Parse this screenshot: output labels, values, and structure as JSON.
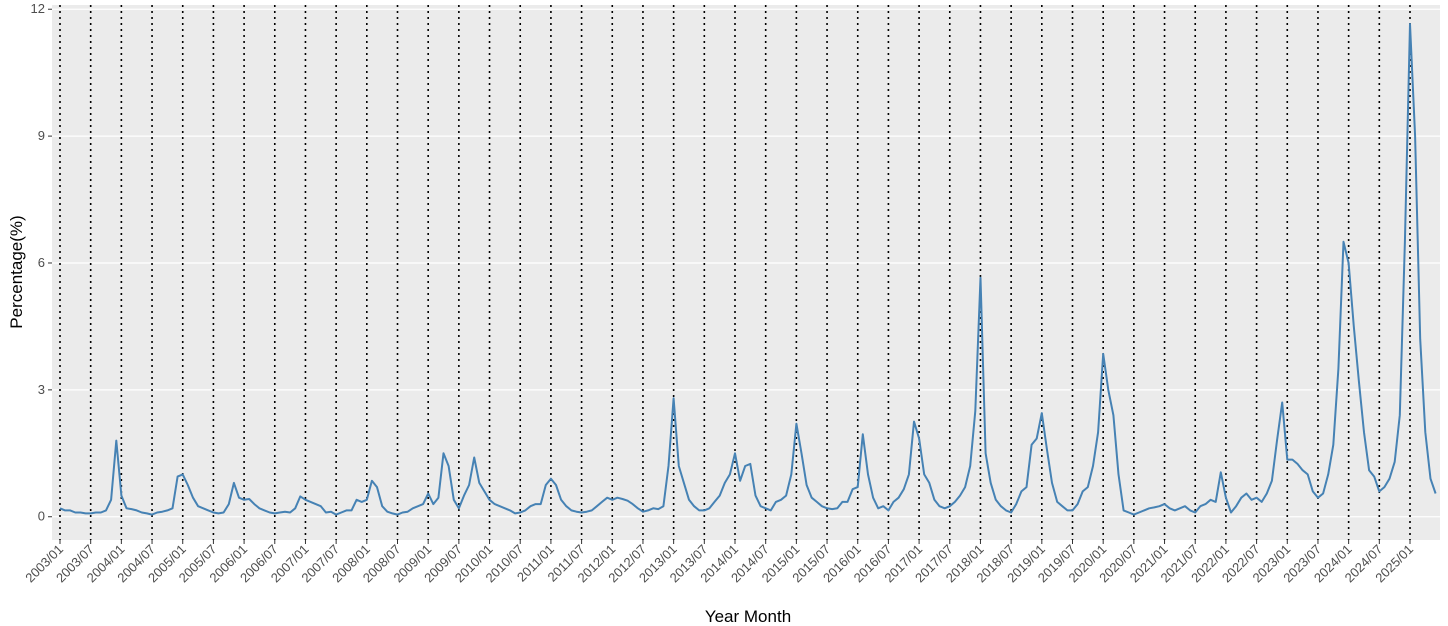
{
  "chart_data": {
    "type": "line",
    "x_label": "Year Month",
    "y_label": "Percentage(%)",
    "ylim": [
      -0.55,
      12.1
    ],
    "yticks": [
      0,
      3,
      6,
      9,
      12
    ],
    "grid": true,
    "x_grid_style": "dotted",
    "categories": [
      "2003/01",
      null,
      null,
      null,
      null,
      null,
      "2003/07",
      null,
      null,
      null,
      null,
      null,
      "2004/01",
      null,
      null,
      null,
      null,
      null,
      "2004/07",
      null,
      null,
      null,
      null,
      null,
      "2005/01",
      null,
      null,
      null,
      null,
      null,
      "2005/07",
      null,
      null,
      null,
      null,
      null,
      "2006/01",
      null,
      null,
      null,
      null,
      null,
      "2006/07",
      null,
      null,
      null,
      null,
      null,
      "2007/01",
      null,
      null,
      null,
      null,
      null,
      "2007/07",
      null,
      null,
      null,
      null,
      null,
      "2008/01",
      null,
      null,
      null,
      null,
      null,
      "2008/07",
      null,
      null,
      null,
      null,
      null,
      "2009/01",
      null,
      null,
      null,
      null,
      null,
      "2009/07",
      null,
      null,
      null,
      null,
      null,
      "2010/01",
      null,
      null,
      null,
      null,
      null,
      "2010/07",
      null,
      null,
      null,
      null,
      null,
      "2011/01",
      null,
      null,
      null,
      null,
      null,
      "2011/07",
      null,
      null,
      null,
      null,
      null,
      "2012/01",
      null,
      null,
      null,
      null,
      null,
      "2012/07",
      null,
      null,
      null,
      null,
      null,
      "2013/01",
      null,
      null,
      null,
      null,
      null,
      "2013/07",
      null,
      null,
      null,
      null,
      null,
      "2014/01",
      null,
      null,
      null,
      null,
      null,
      "2014/07",
      null,
      null,
      null,
      null,
      null,
      "2015/01",
      null,
      null,
      null,
      null,
      null,
      "2015/07",
      null,
      null,
      null,
      null,
      null,
      "2016/01",
      null,
      null,
      null,
      null,
      null,
      "2016/07",
      null,
      null,
      null,
      null,
      null,
      "2017/01",
      null,
      null,
      null,
      null,
      null,
      "2017/07",
      null,
      null,
      null,
      null,
      null,
      "2018/01",
      null,
      null,
      null,
      null,
      null,
      "2018/07",
      null,
      null,
      null,
      null,
      null,
      "2019/01",
      null,
      null,
      null,
      null,
      null,
      "2019/07",
      null,
      null,
      null,
      null,
      null,
      "2020/01",
      null,
      null,
      null,
      null,
      null,
      "2020/07",
      null,
      null,
      null,
      null,
      null,
      "2021/01",
      null,
      null,
      null,
      null,
      null,
      "2021/07",
      null,
      null,
      null,
      null,
      null,
      "2022/01",
      null,
      null,
      null,
      null,
      null,
      "2022/07",
      null,
      null,
      null,
      null,
      null,
      "2023/01",
      null,
      null,
      null,
      null,
      null,
      "2023/07",
      null,
      null,
      null,
      null,
      null,
      "2024/01",
      null,
      null,
      null,
      null,
      null,
      "2024/07",
      null,
      null,
      null,
      null,
      null,
      "2025/01",
      null,
      null,
      null,
      null,
      null
    ],
    "color": "#4682b4",
    "values": [
      0.2,
      0.15,
      0.15,
      0.1,
      0.1,
      0.08,
      0.08,
      0.1,
      0.1,
      0.15,
      0.4,
      1.8,
      0.5,
      0.2,
      0.18,
      0.15,
      0.1,
      0.08,
      0.05,
      0.1,
      0.12,
      0.15,
      0.2,
      0.95,
      1.0,
      0.75,
      0.45,
      0.25,
      0.2,
      0.15,
      0.1,
      0.08,
      0.1,
      0.3,
      0.8,
      0.45,
      0.4,
      0.42,
      0.3,
      0.2,
      0.15,
      0.1,
      0.08,
      0.1,
      0.12,
      0.1,
      0.2,
      0.48,
      0.4,
      0.35,
      0.3,
      0.25,
      0.1,
      0.12,
      0.05,
      0.1,
      0.15,
      0.15,
      0.4,
      0.35,
      0.4,
      0.85,
      0.7,
      0.25,
      0.12,
      0.08,
      0.05,
      0.1,
      0.12,
      0.2,
      0.25,
      0.3,
      0.55,
      0.3,
      0.45,
      1.5,
      1.2,
      0.4,
      0.2,
      0.5,
      0.75,
      1.4,
      0.8,
      0.6,
      0.4,
      0.3,
      0.25,
      0.2,
      0.15,
      0.08,
      0.1,
      0.15,
      0.25,
      0.3,
      0.3,
      0.75,
      0.9,
      0.75,
      0.4,
      0.25,
      0.15,
      0.12,
      0.1,
      0.12,
      0.15,
      0.25,
      0.35,
      0.45,
      0.4,
      0.45,
      0.42,
      0.38,
      0.3,
      0.2,
      0.12,
      0.15,
      0.2,
      0.18,
      0.25,
      1.2,
      2.8,
      1.2,
      0.8,
      0.4,
      0.25,
      0.15,
      0.15,
      0.2,
      0.35,
      0.5,
      0.8,
      1.0,
      1.5,
      0.85,
      1.2,
      1.25,
      0.5,
      0.25,
      0.2,
      0.15,
      0.35,
      0.4,
      0.5,
      1.0,
      2.2,
      1.5,
      0.75,
      0.45,
      0.35,
      0.25,
      0.2,
      0.18,
      0.2,
      0.35,
      0.35,
      0.65,
      0.7,
      1.95,
      1.0,
      0.45,
      0.2,
      0.25,
      0.15,
      0.35,
      0.45,
      0.65,
      1.0,
      2.25,
      1.85,
      1.0,
      0.8,
      0.4,
      0.25,
      0.2,
      0.25,
      0.35,
      0.5,
      0.7,
      1.2,
      2.5,
      5.65,
      1.5,
      0.8,
      0.4,
      0.25,
      0.15,
      0.1,
      0.3,
      0.6,
      0.7,
      1.7,
      1.85,
      2.45,
      1.6,
      0.8,
      0.35,
      0.25,
      0.15,
      0.15,
      0.3,
      0.6,
      0.7,
      1.2,
      2.0,
      3.85,
      3.0,
      2.4,
      1.0,
      0.15,
      0.1,
      0.05,
      0.1,
      0.15,
      0.2,
      0.22,
      0.25,
      0.3,
      0.2,
      0.15,
      0.2,
      0.25,
      0.15,
      0.1,
      0.25,
      0.3,
      0.4,
      0.35,
      1.05,
      0.45,
      0.1,
      0.25,
      0.45,
      0.55,
      0.4,
      0.45,
      0.35,
      0.55,
      0.85,
      1.8,
      2.7,
      1.35,
      1.35,
      1.25,
      1.1,
      1.0,
      0.6,
      0.45,
      0.55,
      1.0,
      1.7,
      3.5,
      6.5,
      6.0,
      4.5,
      3.2,
      2.0,
      1.1,
      0.95,
      0.6,
      0.7,
      0.9,
      1.3,
      2.4,
      6.5,
      11.65,
      9.0,
      4.2,
      2.0,
      0.9,
      0.55
    ]
  }
}
